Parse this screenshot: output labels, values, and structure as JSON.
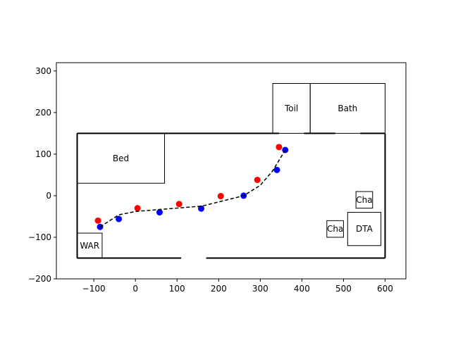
{
  "chart_data": {
    "type": "scatter",
    "title": "",
    "xlabel": "",
    "ylabel": "",
    "xlim": [
      -190,
      650
    ],
    "ylim": [
      -200,
      320
    ],
    "grid": false,
    "xticks": [
      -100,
      0,
      100,
      200,
      300,
      400,
      500,
      600
    ],
    "yticks": [
      -200,
      -100,
      0,
      100,
      200,
      300
    ],
    "xtick_labels": [
      "−100",
      "0",
      "100",
      "200",
      "300",
      "400",
      "500",
      "600"
    ],
    "ytick_labels": [
      "−200",
      "−100",
      "0",
      "100",
      "200",
      "300"
    ],
    "colors": {
      "red": "#ff0000",
      "blue": "#0000ff",
      "path": "#000000"
    },
    "walls": {
      "x": [
        -140,
        600
      ],
      "y": [
        -150,
        150
      ]
    },
    "openings": [
      {
        "side": "bottom",
        "x": [
          110,
          170
        ]
      },
      {
        "side": "top",
        "x": [
          345,
          405
        ]
      },
      {
        "side": "top",
        "x": [
          480,
          540
        ]
      }
    ],
    "rooms": [
      {
        "label": "Bed",
        "x": [
          -140,
          70
        ],
        "y": [
          30,
          150
        ]
      },
      {
        "label": "Toil",
        "x": [
          330,
          420
        ],
        "y": [
          150,
          270
        ]
      },
      {
        "label": "Bath",
        "x": [
          420,
          600
        ],
        "y": [
          150,
          270
        ]
      },
      {
        "label": "WAR",
        "x": [
          -140,
          -80
        ],
        "y": [
          -150,
          -90
        ]
      },
      {
        "label": "Cha",
        "x": [
          530,
          570
        ],
        "y": [
          -30,
          10
        ]
      },
      {
        "label": "Cha",
        "x": [
          460,
          500
        ],
        "y": [
          -100,
          -60
        ]
      },
      {
        "label": "DTA",
        "x": [
          510,
          590
        ],
        "y": [
          -120,
          -40
        ]
      }
    ],
    "series": [
      {
        "marker_color": "red",
        "x": [
          -90,
          5,
          105,
          205,
          293,
          345
        ],
        "y": [
          -60,
          -30,
          -20,
          -1,
          38,
          117
        ]
      },
      {
        "marker_color": "blue",
        "x": [
          -85,
          -40,
          58,
          158,
          260,
          340,
          360
        ],
        "y": [
          -75,
          -56,
          -40,
          -31,
          0,
          62,
          110
        ]
      },
      {
        "style": "dashed-line",
        "x": [
          -85,
          -40,
          0,
          60,
          160,
          260,
          300,
          330,
          345,
          360
        ],
        "y": [
          -75,
          -46,
          -38,
          -33,
          -25,
          0,
          25,
          60,
          85,
          110
        ]
      }
    ]
  }
}
